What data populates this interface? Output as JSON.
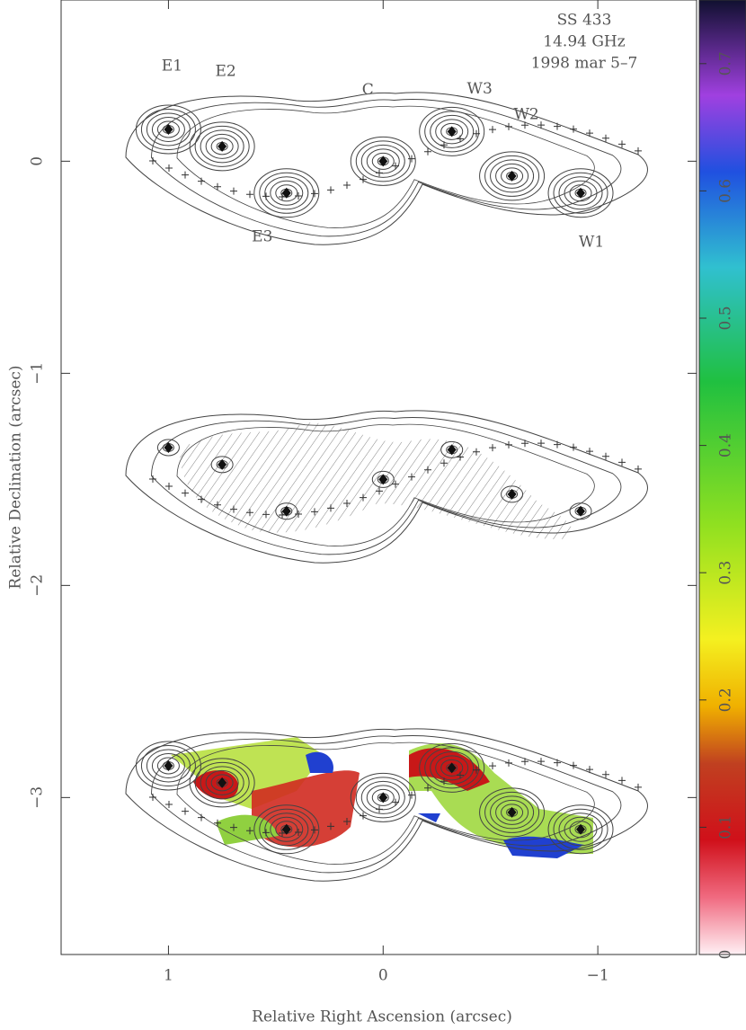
{
  "chart_data": {
    "type": "contour",
    "xlabel": "Relative Right Ascension (arcsec)",
    "ylabel": "Relative Declination (arcsec)",
    "annotations": [
      "SS 433",
      "14.94 GHz",
      "1998 mar 5–7"
    ],
    "xlim": [
      1.5,
      -1.46
    ],
    "ylim": [
      -3.74,
      0.76
    ],
    "xticks": [
      1,
      0,
      {
        "value": -1,
        "label": "−1"
      }
    ],
    "yticks": [
      0,
      {
        "value": -1,
        "label": "−1"
      },
      {
        "value": -2,
        "label": "−2"
      },
      {
        "value": -3,
        "label": "−3"
      }
    ],
    "components": [
      {
        "name": "E1",
        "x": 1.0,
        "y": 0.15
      },
      {
        "name": "E2",
        "x": 0.75,
        "y": 0.07
      },
      {
        "name": "E3",
        "x": 0.45,
        "y": -0.15
      },
      {
        "name": "C",
        "x": 0,
        "y": 0
      },
      {
        "name": "W3",
        "x": -0.32,
        "y": 0.14
      },
      {
        "name": "W2",
        "x": -0.6,
        "y": -0.07
      },
      {
        "name": "W1",
        "x": -0.92,
        "y": -0.15
      }
    ],
    "colorbar": {
      "lim": [
        0,
        0.75
      ],
      "ticks": [
        0,
        0.1,
        0.2,
        0.3,
        0.4,
        0.5,
        0.6,
        0.7
      ]
    }
  }
}
